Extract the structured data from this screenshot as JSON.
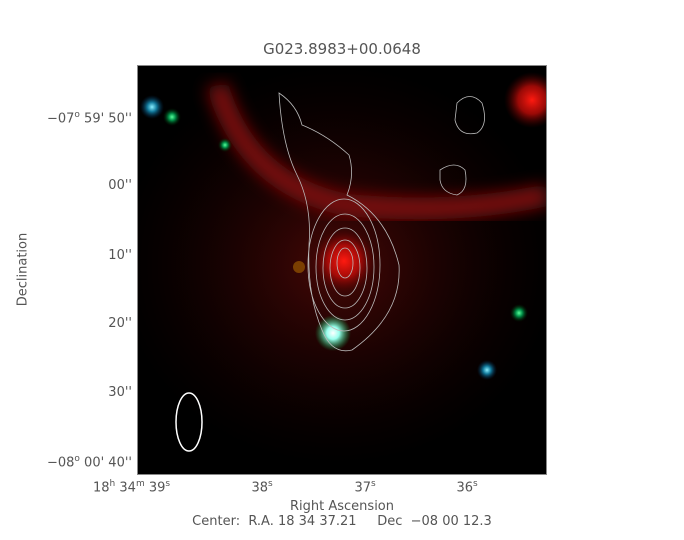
{
  "chart_data": {
    "type": "image",
    "title": "G023.8983+00.0648",
    "xlabel": "Right Ascension",
    "ylabel": "Declination",
    "x_ticks": [
      {
        "main": "18",
        "sup1": "h",
        "mid": " 34",
        "sup2": "m",
        "last": " 39",
        "sup3": "s"
      },
      {
        "last": "38",
        "sup3": "s"
      },
      {
        "last": "37",
        "sup3": "s"
      },
      {
        "last": "36",
        "sup3": "s"
      }
    ],
    "y_ticks": [
      {
        "pre": "−07",
        "sup": "o",
        "post": " 59' 50''"
      },
      {
        "pre": "",
        "sup": "",
        "post": "00''"
      },
      {
        "pre": "",
        "sup": "",
        "post": "10''"
      },
      {
        "pre": "",
        "sup": "",
        "post": "20''"
      },
      {
        "pre": "",
        "sup": "",
        "post": "30''"
      },
      {
        "pre": "−08",
        "sup": "o",
        "post": " 00' 40''"
      }
    ],
    "footer": "Center:  R.A. 18 34 37.21     Dec  −08 00 12.3",
    "colors": {
      "background": "#000000",
      "emission": "#e8100a",
      "contour": "#bbbbbb",
      "beam": "#ffffff"
    }
  }
}
